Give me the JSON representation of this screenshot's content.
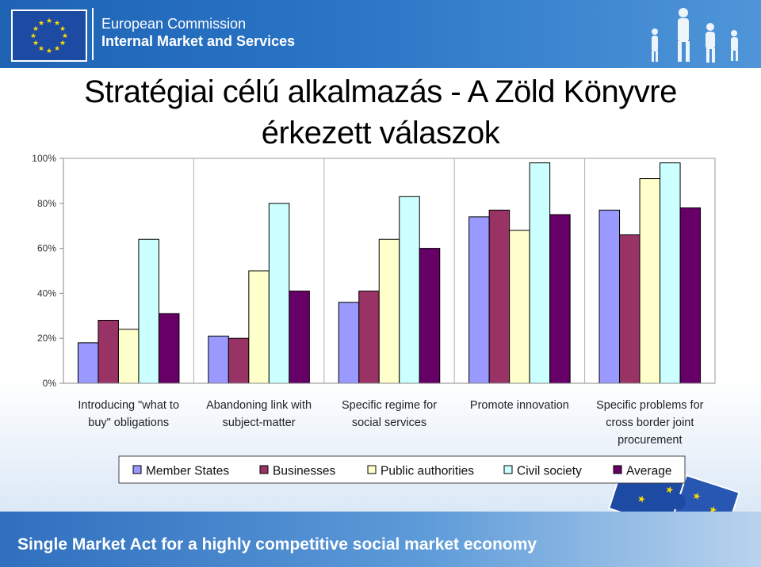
{
  "header": {
    "org_line1": "European Commission",
    "org_line2": "Internal Market and Services"
  },
  "title_line1": "Stratégiai célú alkalmazás - A Zöld Könyvre",
  "title_line2": "érkezett válaszok",
  "footer": {
    "slogan": "Single Market Act for a  highly competitive social market economy"
  },
  "colors": {
    "Member States": "#9999ff",
    "Businesses": "#993366",
    "Public authorities": "#ffffcc",
    "Civil society": "#ccffff",
    "Average": "#660066"
  },
  "chart_data": {
    "type": "bar",
    "title": "Stratégiai célú alkalmazás - A Zöld Könyvre érkezett válaszok",
    "categories": [
      [
        "Introducing \"what to",
        "buy\" obligations"
      ],
      [
        "Abandoning link with",
        "subject-matter"
      ],
      [
        "Specific regime for",
        "social services"
      ],
      [
        "Promote innovation"
      ],
      [
        "Specific problems for",
        "cross border joint",
        "procurement"
      ]
    ],
    "series": [
      {
        "name": "Member States",
        "values": [
          18,
          21,
          36,
          74,
          77
        ]
      },
      {
        "name": "Businesses",
        "values": [
          28,
          20,
          41,
          77,
          66
        ]
      },
      {
        "name": "Public authorities",
        "values": [
          24,
          50,
          64,
          68,
          91
        ]
      },
      {
        "name": "Civil society",
        "values": [
          64,
          80,
          83,
          98,
          98
        ]
      },
      {
        "name": "Average",
        "values": [
          31,
          41,
          60,
          75,
          78
        ]
      }
    ],
    "ylim": [
      0,
      100
    ],
    "yticks": [
      "0%",
      "20%",
      "40%",
      "60%",
      "80%",
      "100%"
    ],
    "ytick_values": [
      0,
      20,
      40,
      60,
      80,
      100
    ],
    "legend_position": "bottom",
    "grid": "vertical separators"
  }
}
